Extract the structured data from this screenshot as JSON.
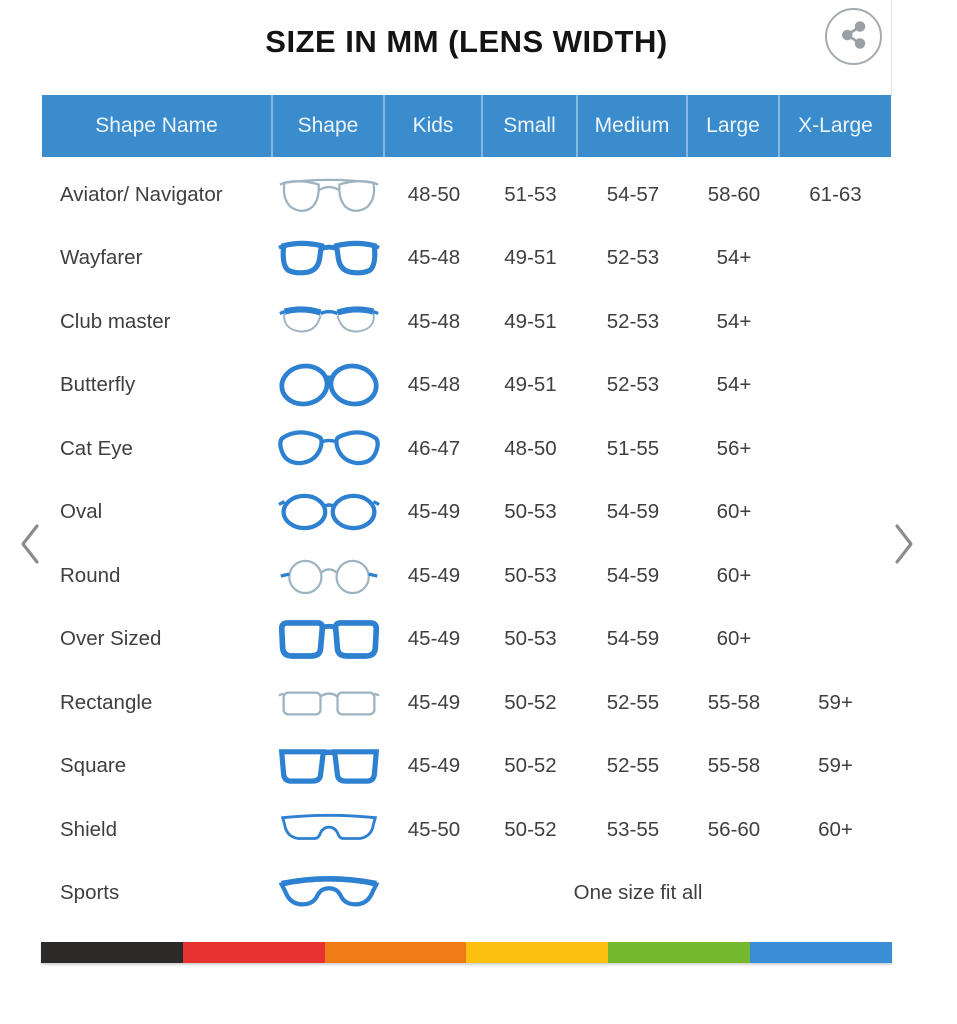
{
  "page": {
    "title": "SIZE IN MM (LENS WIDTH)"
  },
  "carousel": {
    "prev_icon": "chevron-left-icon",
    "next_icon": "chevron-right-icon",
    "share_icon": "share-icon"
  },
  "colors": {
    "header_bg": "#3a8ccd",
    "header_text": "#edf5fc",
    "row_text": "#3f3f3f",
    "title_text": "#141414",
    "frame_blue": "#2e81d1",
    "frame_outline": "#9db4c0",
    "chevron_gray": "#8c8c8c",
    "share_gray": "#9aa0a6",
    "stripe": [
      "#2b2a28",
      "#e63230",
      "#ef7c17",
      "#fcc011",
      "#76b82d",
      "#3a8ed6"
    ]
  },
  "table": {
    "columns": [
      "Shape Name",
      "Shape",
      "Kids",
      "Small",
      "Medium",
      "Large",
      "X-Large"
    ],
    "rows": [
      {
        "name": "Aviator/ Navigator",
        "icon": "aviator-glasses-icon",
        "sizes": [
          "48-50",
          "51-53",
          "54-57",
          "58-60",
          "61-63"
        ]
      },
      {
        "name": "Wayfarer",
        "icon": "wayfarer-glasses-icon",
        "sizes": [
          "45-48",
          "49-51",
          "52-53",
          "54+",
          ""
        ]
      },
      {
        "name": "Club master",
        "icon": "clubmaster-glasses-icon",
        "sizes": [
          "45-48",
          "49-51",
          "52-53",
          "54+",
          ""
        ]
      },
      {
        "name": "Butterfly",
        "icon": "butterfly-glasses-icon",
        "sizes": [
          "45-48",
          "49-51",
          "52-53",
          "54+",
          ""
        ]
      },
      {
        "name": "Cat Eye",
        "icon": "cateye-glasses-icon",
        "sizes": [
          "46-47",
          "48-50",
          "51-55",
          "56+",
          ""
        ]
      },
      {
        "name": "Oval",
        "icon": "oval-glasses-icon",
        "sizes": [
          "45-49",
          "50-53",
          "54-59",
          "60+",
          ""
        ]
      },
      {
        "name": "Round",
        "icon": "round-glasses-icon",
        "sizes": [
          "45-49",
          "50-53",
          "54-59",
          "60+",
          ""
        ]
      },
      {
        "name": "Over Sized",
        "icon": "oversized-glasses-icon",
        "sizes": [
          "45-49",
          "50-53",
          "54-59",
          "60+",
          ""
        ]
      },
      {
        "name": "Rectangle",
        "icon": "rectangle-glasses-icon",
        "sizes": [
          "45-49",
          "50-52",
          "52-55",
          "55-58",
          "59+"
        ]
      },
      {
        "name": "Square",
        "icon": "square-glasses-icon",
        "sizes": [
          "45-49",
          "50-52",
          "52-55",
          "55-58",
          "59+"
        ]
      },
      {
        "name": "Shield",
        "icon": "shield-glasses-icon",
        "sizes": [
          "45-50",
          "50-52",
          "53-55",
          "56-60",
          "60+"
        ]
      },
      {
        "name": "Sports",
        "icon": "sports-glasses-icon",
        "span_text": "One size fit all"
      }
    ]
  }
}
